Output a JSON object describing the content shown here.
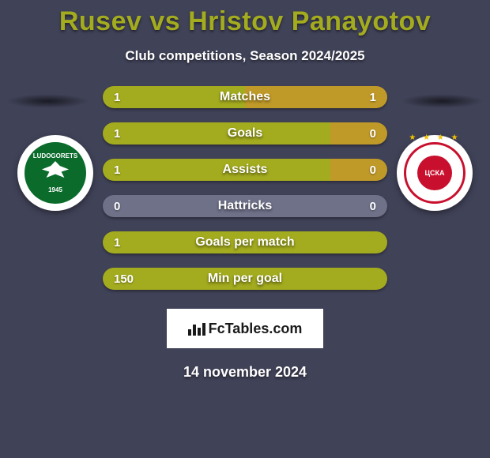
{
  "title": "Rusev vs Hristov Panayotov",
  "title_color": "#a3ab1e",
  "subtitle": "Club competitions, Season 2024/2025",
  "background_color": "#404258",
  "left_team": {
    "name": "LUDOGORETS",
    "year": "1945",
    "badge_bg": "#0a6b2b"
  },
  "right_team": {
    "name": "ЦСКА",
    "badge_accent": "#c8102e",
    "star_color": "#f2c200"
  },
  "bar_styling": {
    "left_color": "#a3ab1e",
    "right_color": "#c09a28",
    "neutral_color": "#6f7189",
    "height": 28,
    "radius": 14,
    "gap": 18,
    "font_size": 15,
    "font_weight": 700,
    "label_font_size": 16
  },
  "rows": [
    {
      "label": "Matches",
      "left_val": "1",
      "right_val": "1",
      "left_pct": 50,
      "has_right_val": true,
      "left_seg_color": "#a3ab1e",
      "right_seg_color": "#c09a28"
    },
    {
      "label": "Goals",
      "left_val": "1",
      "right_val": "0",
      "left_pct": 80,
      "has_right_val": true,
      "left_seg_color": "#a3ab1e",
      "right_seg_color": "#c09a28"
    },
    {
      "label": "Assists",
      "left_val": "1",
      "right_val": "0",
      "left_pct": 80,
      "has_right_val": true,
      "left_seg_color": "#a3ab1e",
      "right_seg_color": "#c09a28"
    },
    {
      "label": "Hattricks",
      "left_val": "0",
      "right_val": "0",
      "left_pct": 50,
      "has_right_val": true,
      "left_seg_color": "#6f7189",
      "right_seg_color": "#6f7189"
    },
    {
      "label": "Goals per match",
      "left_val": "1",
      "right_val": "",
      "left_pct": 100,
      "has_right_val": false,
      "left_seg_color": "#a3ab1e",
      "right_seg_color": "#a3ab1e"
    },
    {
      "label": "Min per goal",
      "left_val": "150",
      "right_val": "",
      "left_pct": 100,
      "has_right_val": false,
      "left_seg_color": "#a3ab1e",
      "right_seg_color": "#a3ab1e"
    }
  ],
  "watermark": "FcTables.com",
  "date": "14 november 2024"
}
